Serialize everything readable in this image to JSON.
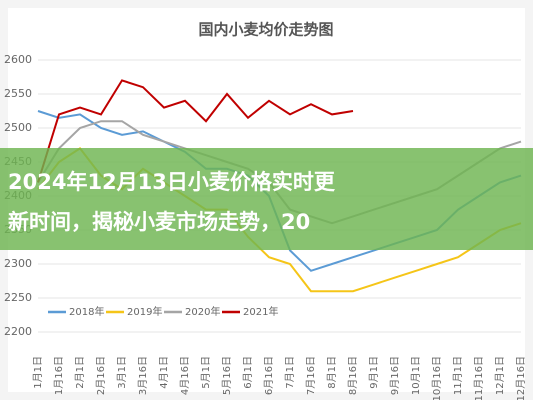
{
  "chart_data": {
    "type": "line",
    "title": "国内小麦均价走势图",
    "categories": [
      "1月1日",
      "1月16日",
      "2月1日",
      "2月16日",
      "3月1日",
      "3月16日",
      "4月1日",
      "4月16日",
      "5月1日",
      "5月16日",
      "6月1日",
      "6月16日",
      "7月1日",
      "7月16日",
      "8月1日",
      "8月16日",
      "9月1日",
      "9月16日",
      "10月1日",
      "10月16日",
      "11月1日",
      "11月16日",
      "12月1日",
      "12月16日"
    ],
    "series": [
      {
        "name": "2018年",
        "color": "#5b9bd5",
        "values": [
          2525,
          2515,
          2520,
          2500,
          2490,
          2495,
          2480,
          2465,
          2440,
          2440,
          2430,
          2400,
          2320,
          2290,
          2300,
          2310,
          2320,
          2330,
          2340,
          2350,
          2380,
          2400,
          2420,
          2430
        ]
      },
      {
        "name": "2019年",
        "color": "#f5c518",
        "values": [
          2410,
          2450,
          2470,
          2430,
          2410,
          2440,
          2420,
          2400,
          2380,
          2380,
          2340,
          2310,
          2300,
          2260,
          2260,
          2260,
          2270,
          2280,
          2290,
          2300,
          2310,
          2330,
          2350,
          2360
        ]
      },
      {
        "name": "2020年",
        "color": "#a5a5a5",
        "values": [
          2420,
          2470,
          2500,
          2510,
          2510,
          2490,
          2480,
          2470,
          2460,
          2450,
          2440,
          2420,
          2380,
          2370,
          2360,
          2370,
          2380,
          2390,
          2400,
          2410,
          2430,
          2450,
          2470,
          2480
        ]
      },
      {
        "name": "2021年",
        "color": "#c00000",
        "values": [
          2420,
          2520,
          2530,
          2520,
          2570,
          2560,
          2530,
          2540,
          2510,
          2550,
          2515,
          2540,
          2520,
          2535,
          2520,
          2525,
          null,
          null,
          null,
          null,
          null,
          null,
          null,
          null
        ]
      }
    ],
    "ylim": [
      2200,
      2600
    ],
    "yticks": [
      2200,
      2250,
      2300,
      2350,
      2400,
      2450,
      2500,
      2550,
      2600
    ],
    "grid": true
  },
  "banner": {
    "lines": [
      "2024年12月13日小麦价格实时更",
      "新时间，揭秘小麦市场走势，20"
    ]
  }
}
